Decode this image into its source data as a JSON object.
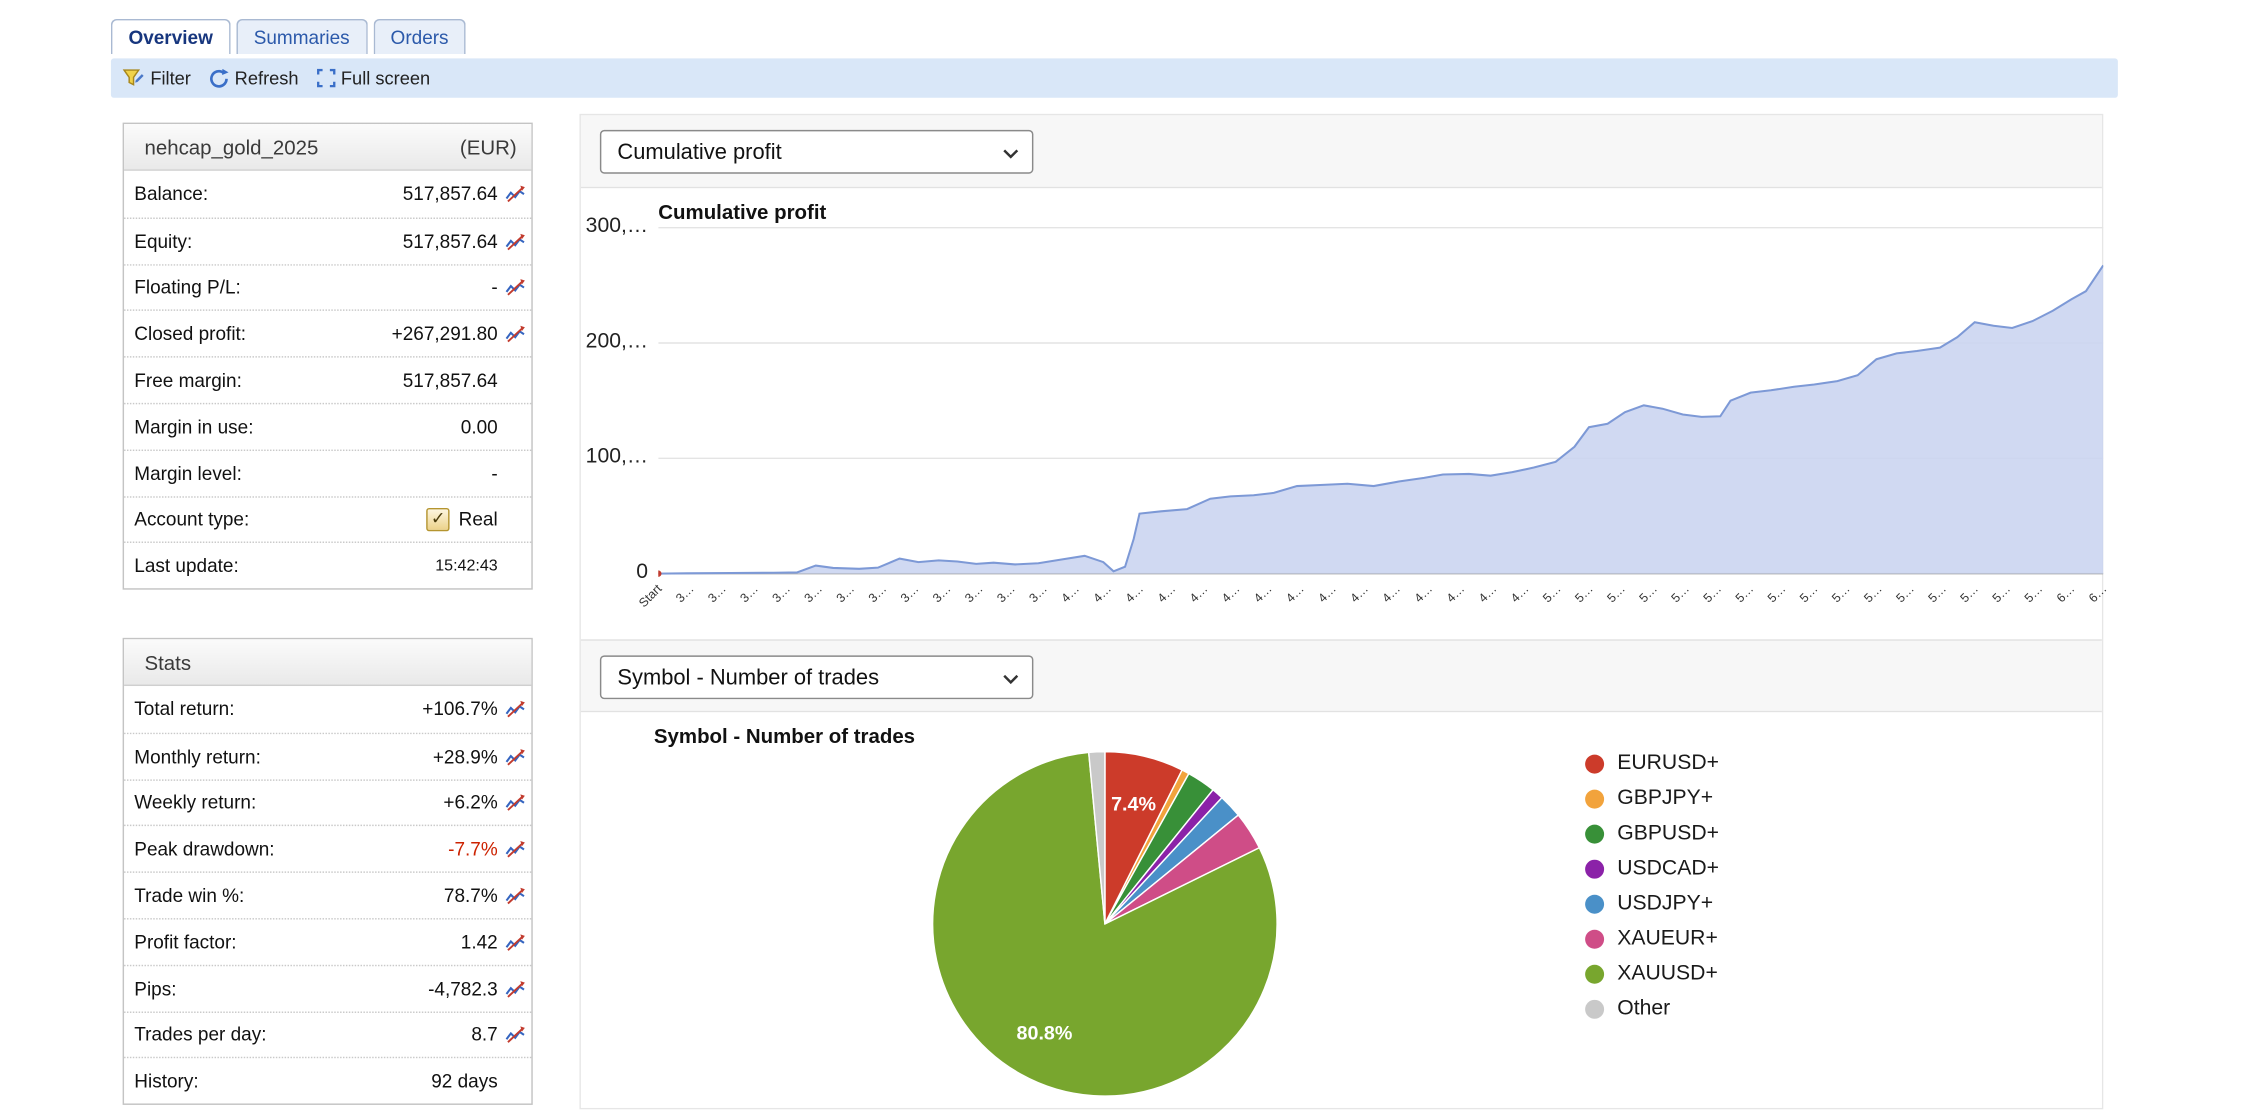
{
  "tabs": [
    {
      "label": "Overview",
      "active": true
    },
    {
      "label": "Summaries",
      "active": false
    },
    {
      "label": "Orders",
      "active": false
    }
  ],
  "toolbar": {
    "filter": "Filter",
    "refresh": "Refresh",
    "fullscreen": "Full screen"
  },
  "account": {
    "name": "nehcap_gold_2025",
    "currency": "(EUR)",
    "rows": [
      {
        "label": "Balance:",
        "value": "517,857.64",
        "icon": true
      },
      {
        "label": "Equity:",
        "value": "517,857.64",
        "icon": true
      },
      {
        "label": "Floating P/L:",
        "value": "-",
        "icon": true
      },
      {
        "label": "Closed profit:",
        "value": "+267,291.80",
        "icon": true
      },
      {
        "label": "Free margin:",
        "value": "517,857.64"
      },
      {
        "label": "Margin in use:",
        "value": "0.00"
      },
      {
        "label": "Margin level:",
        "value": "-"
      },
      {
        "label": "Account type:",
        "value": "Real",
        "checkbox": true
      },
      {
        "label": "Last update:",
        "value": "15:42:43",
        "small": true
      }
    ]
  },
  "stats": {
    "title": "Stats",
    "rows": [
      {
        "label": "Total return:",
        "value": "+106.7%",
        "icon": true
      },
      {
        "label": "Monthly return:",
        "value": "+28.9%",
        "icon": true
      },
      {
        "label": "Weekly return:",
        "value": "+6.2%",
        "icon": true
      },
      {
        "label": "Peak drawdown:",
        "value": "-7.7%",
        "icon": true,
        "color": "#cc2200"
      },
      {
        "label": "Trade win %:",
        "value": "78.7%",
        "icon": true
      },
      {
        "label": "Profit factor:",
        "value": "1.42",
        "icon": true
      },
      {
        "label": "Pips:",
        "value": "-4,782.3",
        "icon": true
      },
      {
        "label": "Trades per day:",
        "value": "8.7",
        "icon": true
      },
      {
        "label": "History:",
        "value": "92 days"
      }
    ]
  },
  "chart_data": [
    {
      "type": "area",
      "title": "Cumulative profit",
      "select_value": "Cumulative profit",
      "ylim": [
        0,
        300000
      ],
      "line_color": "#7d99d6",
      "fill_color": "#c9d4f0",
      "start_marker_color": "#c23b2e",
      "y_ticks": [
        {
          "label": "300,…",
          "value": 300000
        },
        {
          "label": "200,…",
          "value": 200000
        },
        {
          "label": "100,…",
          "value": 100000
        },
        {
          "label": "0",
          "value": 0
        }
      ],
      "x_ticks": [
        "Start",
        "3…",
        "3…",
        "3…",
        "3…",
        "3…",
        "3…",
        "3…",
        "3…",
        "3…",
        "3…",
        "3…",
        "3…",
        "4…",
        "4…",
        "4…",
        "4…",
        "4…",
        "4…",
        "4…",
        "4…",
        "4…",
        "4…",
        "4…",
        "4…",
        "4…",
        "4…",
        "4…",
        "5…",
        "5…",
        "5…",
        "5…",
        "5…",
        "5…",
        "5…",
        "5…",
        "5…",
        "5…",
        "5…",
        "5…",
        "5…",
        "5…",
        "5…",
        "5…",
        "6…",
        "6…"
      ],
      "points": [
        [
          0,
          0
        ],
        [
          0.02,
          300
        ],
        [
          0.05,
          500
        ],
        [
          0.08,
          800
        ],
        [
          0.096,
          1000
        ],
        [
          0.109,
          7000
        ],
        [
          0.121,
          5000
        ],
        [
          0.139,
          4200
        ],
        [
          0.152,
          5200
        ],
        [
          0.167,
          13000
        ],
        [
          0.18,
          10000
        ],
        [
          0.194,
          11500
        ],
        [
          0.207,
          10500
        ],
        [
          0.22,
          8500
        ],
        [
          0.232,
          9500
        ],
        [
          0.247,
          8000
        ],
        [
          0.263,
          9000
        ],
        [
          0.278,
          12000
        ],
        [
          0.295,
          15500
        ],
        [
          0.308,
          10000
        ],
        [
          0.315,
          2000
        ],
        [
          0.323,
          6000
        ],
        [
          0.329,
          30000
        ],
        [
          0.333,
          52000
        ],
        [
          0.348,
          54000
        ],
        [
          0.366,
          56000
        ],
        [
          0.382,
          65000
        ],
        [
          0.396,
          67000
        ],
        [
          0.412,
          68000
        ],
        [
          0.426,
          70000
        ],
        [
          0.442,
          76000
        ],
        [
          0.46,
          77000
        ],
        [
          0.477,
          78000
        ],
        [
          0.495,
          76000
        ],
        [
          0.513,
          80000
        ],
        [
          0.53,
          83000
        ],
        [
          0.543,
          86000
        ],
        [
          0.561,
          86500
        ],
        [
          0.576,
          85000
        ],
        [
          0.591,
          88000
        ],
        [
          0.606,
          92000
        ],
        [
          0.621,
          97000
        ],
        [
          0.634,
          110000
        ],
        [
          0.644,
          127000
        ],
        [
          0.657,
          130000
        ],
        [
          0.669,
          140000
        ],
        [
          0.682,
          146000
        ],
        [
          0.695,
          143000
        ],
        [
          0.709,
          138000
        ],
        [
          0.722,
          136000
        ],
        [
          0.735,
          136500
        ],
        [
          0.742,
          150000
        ],
        [
          0.756,
          157000
        ],
        [
          0.77,
          159000
        ],
        [
          0.786,
          162000
        ],
        [
          0.8,
          164000
        ],
        [
          0.816,
          167000
        ],
        [
          0.83,
          172000
        ],
        [
          0.843,
          186000
        ],
        [
          0.857,
          191000
        ],
        [
          0.871,
          193000
        ],
        [
          0.887,
          196000
        ],
        [
          0.899,
          205000
        ],
        [
          0.911,
          218000
        ],
        [
          0.924,
          215000
        ],
        [
          0.937,
          213000
        ],
        [
          0.951,
          219000
        ],
        [
          0.965,
          228000
        ],
        [
          0.978,
          238000
        ],
        [
          0.988,
          245000
        ],
        [
          1,
          267292
        ]
      ]
    },
    {
      "type": "pie",
      "title": "Symbol - Number of trades",
      "select_value": "Symbol - Number of trades",
      "label_threshold_pct": 5,
      "slices": [
        {
          "label": "EURUSD+",
          "pct": 7.4,
          "color": "#cc3b2a"
        },
        {
          "label": "GBPJPY+",
          "pct": 0.7,
          "color": "#f2a33c"
        },
        {
          "label": "GBPUSD+",
          "pct": 2.7,
          "color": "#389038"
        },
        {
          "label": "USDCAD+",
          "pct": 1.1,
          "color": "#8b22a8"
        },
        {
          "label": "USDJPY+",
          "pct": 2.2,
          "color": "#4a90c8"
        },
        {
          "label": "XAUEUR+",
          "pct": 3.6,
          "color": "#cf4d87"
        },
        {
          "label": "XAUUSD+",
          "pct": 80.8,
          "color": "#78a62e"
        },
        {
          "label": "Other",
          "pct": 1.5,
          "color": "#c9c9c9"
        }
      ]
    }
  ]
}
